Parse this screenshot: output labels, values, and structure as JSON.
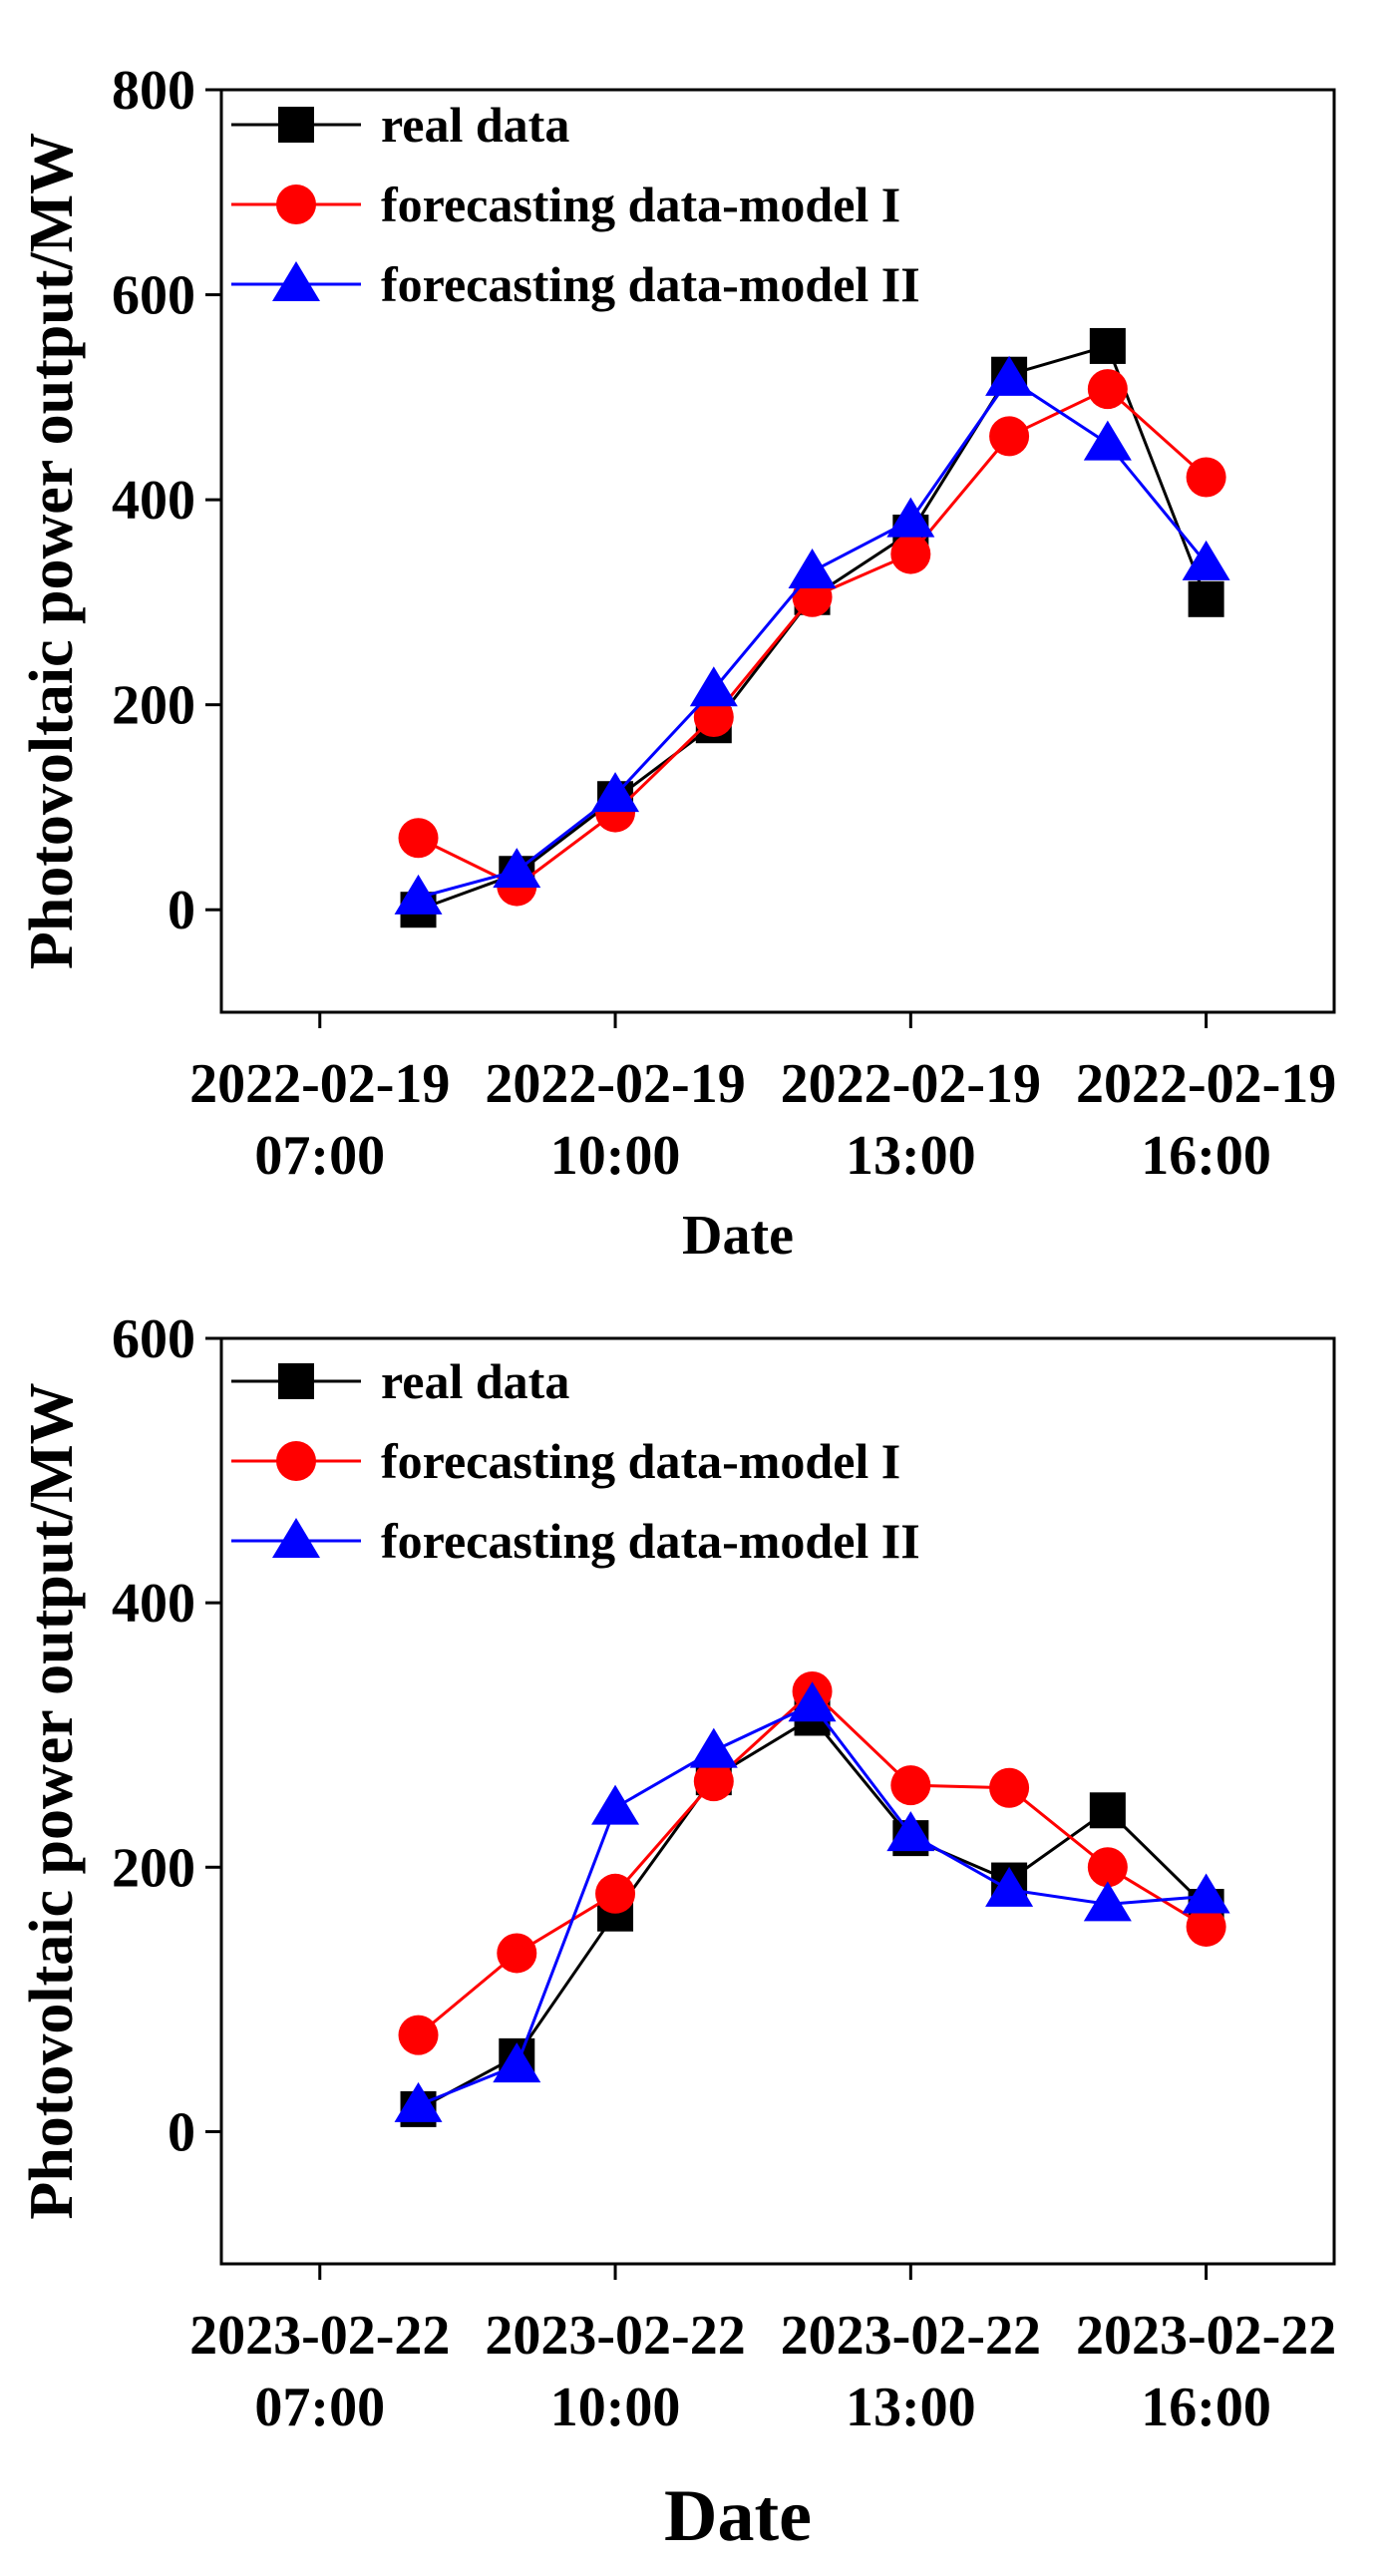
{
  "chart_data": [
    {
      "type": "line",
      "title": "",
      "xlabel": "Date",
      "ylabel": "Photovoltaic power output/MW",
      "x_positions": [
        7,
        8,
        9,
        10,
        11,
        12,
        13,
        14,
        15,
        16
      ],
      "xlim": [
        6,
        17.3
      ],
      "ylim": [
        -100,
        800
      ],
      "yticks": [
        0,
        200,
        400,
        600,
        800
      ],
      "xticks": [
        {
          "x": 7,
          "date": "2022-02-19",
          "time": "07:00"
        },
        {
          "x": 10,
          "date": "2022-02-19",
          "time": "10:00"
        },
        {
          "x": 13,
          "date": "2022-02-19",
          "time": "13:00"
        },
        {
          "x": 16,
          "date": "2022-02-19",
          "time": "16:00"
        }
      ],
      "x": [
        8,
        9,
        10,
        11,
        12,
        13,
        14,
        15,
        16
      ],
      "legend_position": "top-left",
      "series": [
        {
          "name": "real data",
          "marker": "square",
          "color": "#000000",
          "values": [
            0,
            35,
            108,
            180,
            305,
            368,
            522,
            550,
            303
          ]
        },
        {
          "name": "forecasting data-model I",
          "marker": "circle",
          "color": "#ff0000",
          "values": [
            70,
            23,
            95,
            188,
            305,
            347,
            462,
            508,
            422
          ]
        },
        {
          "name": "forecasting data-model II",
          "marker": "triangle",
          "color": "#0000ff",
          "values": [
            12,
            38,
            112,
            215,
            330,
            380,
            518,
            455,
            338
          ]
        }
      ]
    },
    {
      "type": "line",
      "title": "",
      "xlabel": "Date",
      "ylabel": "Photovoltaic power output/MW",
      "xlim": [
        6,
        17.3
      ],
      "ylim": [
        -100,
        600
      ],
      "yticks": [
        0,
        200,
        400,
        600
      ],
      "xticks": [
        {
          "x": 7,
          "date": "2023-02-22",
          "time": "07:00"
        },
        {
          "x": 10,
          "date": "2023-02-22",
          "time": "10:00"
        },
        {
          "x": 13,
          "date": "2023-02-22",
          "time": "13:00"
        },
        {
          "x": 16,
          "date": "2023-02-22",
          "time": "16:00"
        }
      ],
      "x": [
        8,
        9,
        10,
        11,
        12,
        13,
        14,
        15,
        16
      ],
      "legend_position": "top-left",
      "series": [
        {
          "name": "real data",
          "marker": "square",
          "color": "#000000",
          "values": [
            17,
            57,
            165,
            268,
            313,
            222,
            190,
            243,
            170
          ]
        },
        {
          "name": "forecasting data-model I",
          "marker": "circle",
          "color": "#ff0000",
          "values": [
            73,
            135,
            180,
            265,
            333,
            262,
            260,
            200,
            155
          ]
        },
        {
          "name": "forecasting data-model II",
          "marker": "triangle",
          "color": "#0000ff",
          "values": [
            20,
            50,
            245,
            288,
            323,
            225,
            183,
            172,
            178
          ]
        }
      ]
    }
  ]
}
